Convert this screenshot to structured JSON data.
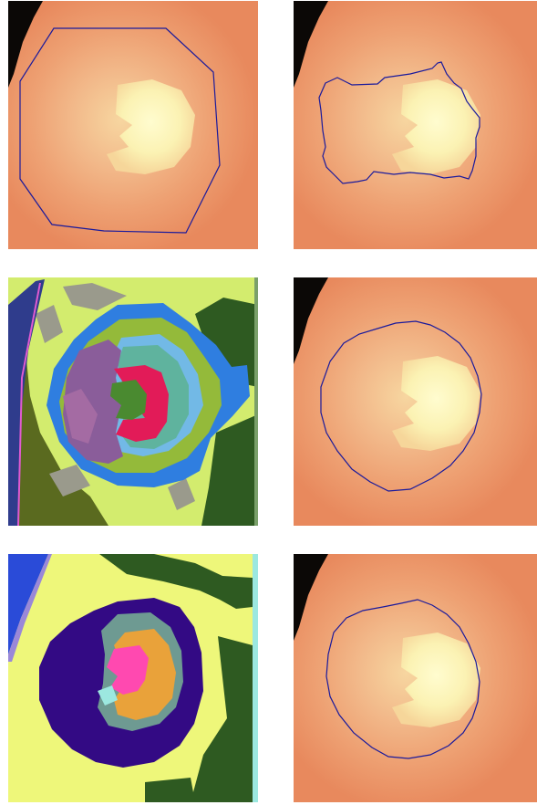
{
  "figure": {
    "grid": {
      "rows": 3,
      "columns": 2
    },
    "panels": [
      {
        "role": "fundus-image-with-polygon-boundary"
      },
      {
        "role": "fundus-image-with-irregular-boundary"
      },
      {
        "role": "clustered-segmentation-map-multicolor"
      },
      {
        "role": "fundus-image-with-smooth-boundary"
      },
      {
        "role": "clustered-segmentation-map-fewer-clusters"
      },
      {
        "role": "fundus-image-with-smooth-boundary"
      }
    ]
  },
  "colors": {
    "fundus_background": "#e98a5e",
    "fundus_glow": "#f2b889",
    "optic_disc_core": "#fdf7c0",
    "dark_corner": "#0a0705",
    "boundary_line": "#1a1a9c",
    "seg_lightgreen": "#d3ec6e",
    "seg_darkgreen": "#2e5a21",
    "seg_olive": "#5a6a1f",
    "seg_blue": "#2f7ee0",
    "seg_lightblue": "#72b9e6",
    "seg_teal": "#5fb39e",
    "seg_grassgreen": "#94ba3a",
    "seg_purple": "#8a5d9a",
    "seg_mauve": "#a46ba3",
    "seg_crimson": "#e21b58",
    "seg_green": "#4a8a30",
    "seg_gray": "#9a9a8c",
    "seg_navy": "#2f3c8c",
    "seg_yellow": "#eef77a",
    "seg_indigo": "#330a84",
    "seg_slate": "#6e9a92",
    "seg_orange": "#e9a23a",
    "seg_pink": "#ff49b0",
    "seg_cyan": "#9ce8e0",
    "seg_royalblue": "#2a4bd8"
  }
}
